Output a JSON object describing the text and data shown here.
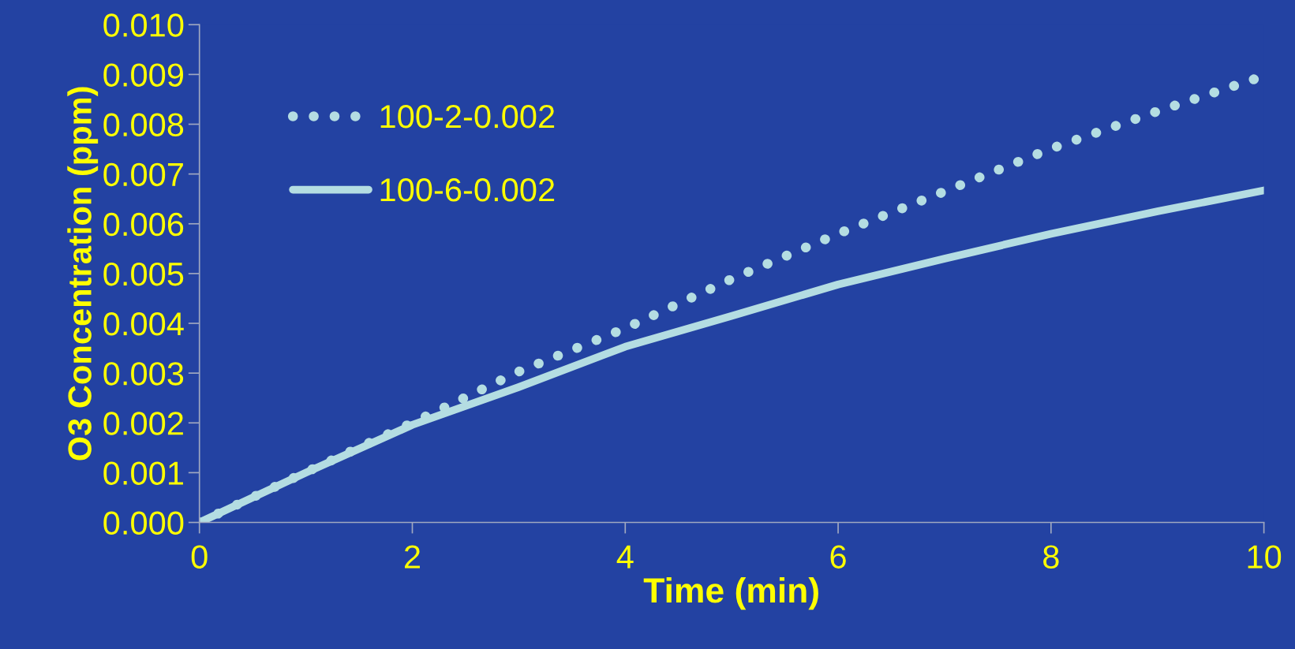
{
  "chart_data": {
    "type": "line",
    "xlabel": "Time (min)",
    "ylabel": "O3 Concentration (ppm)",
    "x": [
      0,
      1,
      2,
      3,
      4,
      5,
      6,
      7,
      8,
      9,
      10
    ],
    "series": [
      {
        "name": "100-2-0.002",
        "color": "#b4dde2",
        "line_style": "dotted",
        "values": [
          0.0,
          0.00101,
          0.002,
          0.00303,
          0.0039,
          0.00489,
          0.0058,
          0.00665,
          0.00751,
          0.00826,
          0.00897
        ]
      },
      {
        "name": "100-6-0.002",
        "color": "#b4dde2",
        "line_style": "solid",
        "values": [
          0.0,
          0.001,
          0.00196,
          0.00272,
          0.00353,
          0.00415,
          0.00478,
          0.0053,
          0.0058,
          0.00625,
          0.00667
        ]
      }
    ],
    "xlim": [
      0,
      10
    ],
    "xticks": [
      0,
      2,
      4,
      6,
      8,
      10
    ],
    "ylim": [
      0,
      0.01
    ],
    "yticks": [
      {
        "value": 0,
        "label": "0.000"
      },
      {
        "value": 0.001,
        "label": "0.001"
      },
      {
        "value": 0.002,
        "label": "0.002"
      },
      {
        "value": 0.003,
        "label": "0.003"
      },
      {
        "value": 0.004,
        "label": "0.004"
      },
      {
        "value": 0.005,
        "label": "0.005"
      },
      {
        "value": 0.006,
        "label": "0.006"
      },
      {
        "value": 0.007,
        "label": "0.007"
      },
      {
        "value": 0.008,
        "label": "0.008"
      },
      {
        "value": 0.009,
        "label": "0.009"
      },
      {
        "value": 0.01,
        "label": "0.010"
      }
    ],
    "grid": false,
    "legend": "top left"
  }
}
